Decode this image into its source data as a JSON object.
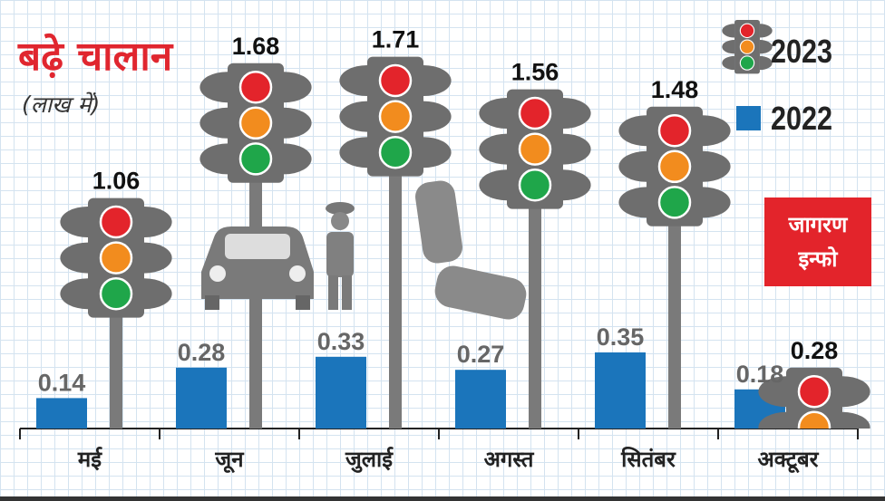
{
  "title": "बढ़े चालान",
  "subtitle": "(लाख में)",
  "badge": {
    "line1": "जागरण",
    "line2": "इन्फो"
  },
  "colors": {
    "bar_2022": "#1b75bb",
    "light_housing": "#6e6e6e",
    "red": "#e3242b",
    "amber": "#f28c1e",
    "green": "#1fa64a"
  },
  "chart_data": {
    "type": "bar",
    "title": "बढ़े चालान",
    "subtitle": "(लाख में)",
    "xlabel": "",
    "ylabel": "",
    "categories": [
      "मई",
      "जून",
      "जुलाई",
      "अगस्त",
      "सितंबर",
      "अक्टूबर"
    ],
    "series": [
      {
        "name": "2023",
        "values": [
          1.06,
          1.68,
          1.71,
          1.56,
          1.48,
          0.28
        ],
        "labels": [
          "1.06",
          "1.68",
          "1.71",
          "1.56",
          "1.48",
          "0.28"
        ],
        "style": "traffic-light"
      },
      {
        "name": "2022",
        "values": [
          0.14,
          0.28,
          0.33,
          0.27,
          0.35,
          0.18
        ],
        "labels": [
          "0.14",
          "0.28",
          "0.33",
          "0.27",
          "0.35",
          "0.18"
        ],
        "style": "bar"
      }
    ],
    "ylim": [
      0,
      1.9
    ],
    "legend": {
      "position": "top-right",
      "entries": [
        "2023",
        "2022"
      ]
    },
    "grid": true
  }
}
